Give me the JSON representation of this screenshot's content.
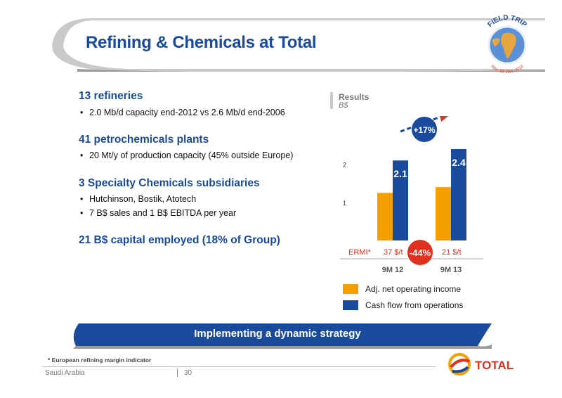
{
  "title": "Refining & Chemicals at Total",
  "badge": {
    "line1": "FIELD TRIP",
    "line2": "Nov. 18-19th, 2013"
  },
  "sections": [
    {
      "heading": "13 refineries",
      "bullets": [
        "2.0 Mb/d capacity end-2012 vs 2.6 Mb/d end-2006"
      ]
    },
    {
      "heading": "41 petrochemicals plants",
      "bullets": [
        "20 Mt/y of production capacity (45% outside Europe)"
      ]
    },
    {
      "heading": "3 Specialty Chemicals subsidiaries",
      "bullets": [
        "Hutchinson, Bostik, Atotech",
        "7 B$ sales and 1 B$ EBITDA per year"
      ]
    },
    {
      "heading": "21 B$ capital employed (18% of Group)",
      "bullets": []
    }
  ],
  "results": {
    "title": "Results",
    "unit": "B$"
  },
  "chart_data": {
    "type": "bar",
    "categories": [
      "9M 12",
      "9M 13"
    ],
    "series": [
      {
        "name": "Adj. net operating income",
        "values": [
          1.25,
          1.4
        ],
        "color": "#f5a000"
      },
      {
        "name": "Cash flow from operations",
        "values": [
          2.1,
          2.4
        ],
        "color": "#1a4a9c"
      }
    ],
    "data_labels": [
      "2.1",
      "2.4"
    ],
    "y_ticks": [
      "1",
      "2"
    ],
    "ylim": [
      0,
      2.75
    ],
    "growth_label": "+17%",
    "ermi": {
      "label": "ERMI*",
      "values": [
        "37 $/t",
        "21 $/t"
      ],
      "change": "-44%"
    }
  },
  "banner": "Implementing a dynamic strategy",
  "footnote": "* European refining margin indicator",
  "footer": {
    "left": "Saudi Arabia",
    "page": "30"
  },
  "logo": {
    "text": "TOTAL"
  },
  "colors": {
    "blue": "#1a4a9c",
    "orange": "#f5a000",
    "red": "#e03020"
  }
}
